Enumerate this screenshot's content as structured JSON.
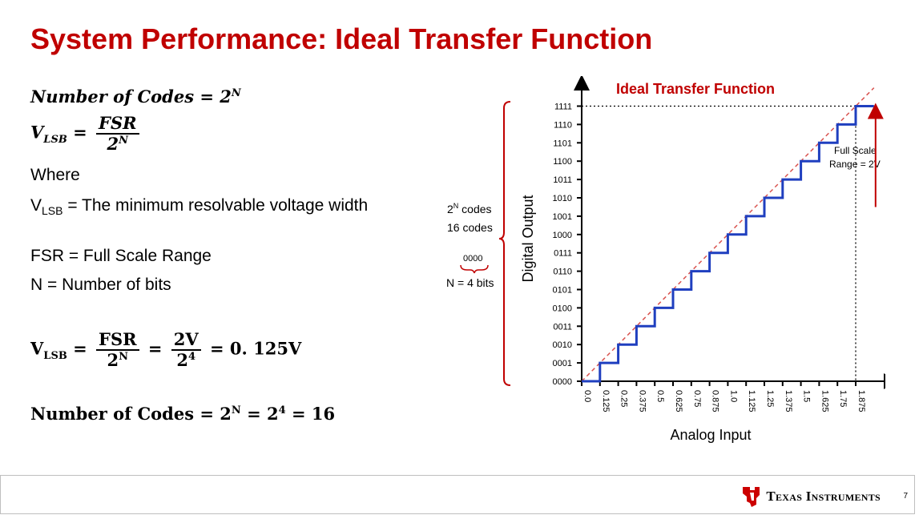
{
  "slide": {
    "title": "System Performance: Ideal Transfer Function",
    "page_number": "7",
    "brand": "Texas Instruments"
  },
  "formulas": {
    "codes_lhs": "Number of Codes",
    "codes_rhs": "2",
    "codes_exp": "N",
    "vlsb_v": "V",
    "vlsb_sub": "LSB",
    "vlsb_num": "FSR",
    "vlsb_den": "2",
    "vlsb_den_exp": "N",
    "ex_v": "V",
    "ex_sub": "LSB",
    "ex_num1": "FSR",
    "ex_den1": "2",
    "ex_den1_exp": "N",
    "ex_num2": "2V",
    "ex_den2": "2",
    "ex_den2_exp": "4",
    "ex_result": "0. 125V",
    "codes_ex_lhs": "Number of Codes",
    "codes_ex_a": "2",
    "codes_ex_a_exp": "N",
    "codes_ex_b": "2",
    "codes_ex_b_exp": "4",
    "codes_ex_result": "16"
  },
  "definitions": {
    "where": "Where",
    "vlsb_prefix": "V",
    "vlsb_sub": "LSB",
    "vlsb_text": " = The minimum resolvable voltage width",
    "fsr_text": "FSR = Full Scale Range",
    "n_text": "N = Number of bits"
  },
  "chart_data": {
    "type": "line",
    "title": "Ideal Transfer Function",
    "xlabel": "Analog Input",
    "ylabel": "Digital Output",
    "x_ticks": [
      "0.0",
      "0.125",
      "0.25",
      "0.375",
      "0.5",
      "0.625",
      "0.75",
      "0.875",
      "1.0",
      "1.125",
      "1.25",
      "1.375",
      "1.5",
      "1.625",
      "1.75",
      "1.875"
    ],
    "y_ticks": [
      "0000",
      "0001",
      "0010",
      "0011",
      "0100",
      "0101",
      "0110",
      "0111",
      "1000",
      "1001",
      "1010",
      "1011",
      "1100",
      "1101",
      "1110",
      "1111"
    ],
    "series": [
      {
        "color": "#1f3fbf",
        "step": true,
        "x": [
          0.0,
          0.125,
          0.25,
          0.375,
          0.5,
          0.625,
          0.75,
          0.875,
          1.0,
          1.125,
          1.25,
          1.375,
          1.5,
          1.625,
          1.75,
          1.875
        ],
        "y": [
          0,
          1,
          2,
          3,
          4,
          5,
          6,
          7,
          8,
          9,
          10,
          11,
          12,
          13,
          14,
          15
        ]
      },
      {
        "color": "#d9534f",
        "dashed": true,
        "x": [
          0.0,
          2.0
        ],
        "y": [
          0,
          16
        ]
      }
    ],
    "xlim": [
      0,
      2.0
    ],
    "ylim": [
      0,
      15
    ],
    "annotations": {
      "full_scale_line1": "Full Scale",
      "full_scale_line2": "Range = 2V",
      "codes_line1_base": "2",
      "codes_line1_exp": "N",
      "codes_line1_rest": " codes",
      "codes_line2": "16 codes",
      "bits_example": "0000",
      "bits_label": "N = 4 bits"
    },
    "colors": {
      "title": "#c00000",
      "axis": "#000000",
      "bracket": "#c00000",
      "arrow": "#c00000"
    }
  }
}
